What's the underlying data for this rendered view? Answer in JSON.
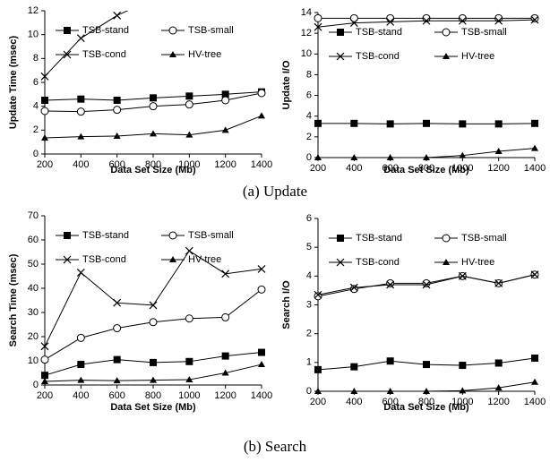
{
  "chart_data": [
    {
      "type": "line",
      "xlabel": "Data Set Size (Mb)",
      "ylabel": "Update Time (msec)",
      "x": [
        200,
        400,
        600,
        800,
        1000,
        1200,
        1400
      ],
      "xlim": [
        200,
        1400
      ],
      "xticks": [
        200,
        400,
        600,
        800,
        1000,
        1200,
        1400
      ],
      "ylim": [
        0,
        12
      ],
      "yticks": [
        0,
        2,
        4,
        6,
        8,
        10,
        12
      ],
      "series": [
        {
          "name": "TSB-stand",
          "color": "#000000",
          "marker": "square",
          "values": [
            4.5,
            4.6,
            4.5,
            4.7,
            4.85,
            5.0,
            5.2
          ]
        },
        {
          "name": "TSB-small",
          "color": "#000000",
          "marker": "circle",
          "values": [
            3.6,
            3.55,
            3.7,
            4.0,
            4.15,
            4.5,
            5.1
          ]
        },
        {
          "name": "TSB-cond",
          "color": "#000000",
          "marker": "x",
          "values": [
            6.5,
            9.7,
            11.6,
            13.0,
            null,
            null,
            null
          ]
        },
        {
          "name": "HV-tree",
          "color": "#000000",
          "marker": "triangle",
          "values": [
            1.35,
            1.45,
            1.5,
            1.7,
            1.6,
            2.0,
            3.2
          ]
        }
      ]
    },
    {
      "type": "line",
      "xlabel": "Data Set Size (Mb)",
      "ylabel": "Update I/O",
      "x": [
        200,
        400,
        600,
        800,
        1000,
        1200,
        1400
      ],
      "xlim": [
        200,
        1400
      ],
      "xticks": [
        200,
        400,
        600,
        800,
        1000,
        1200,
        1400
      ],
      "ylim": [
        0,
        14
      ],
      "yticks": [
        0,
        2,
        4,
        6,
        8,
        10,
        12,
        14
      ],
      "series": [
        {
          "name": "TSB-stand",
          "color": "#000000",
          "marker": "square",
          "values": [
            3.3,
            3.3,
            3.25,
            3.3,
            3.25,
            3.25,
            3.3
          ]
        },
        {
          "name": "TSB-small",
          "color": "#000000",
          "marker": "circle",
          "values": [
            13.45,
            13.45,
            13.45,
            13.45,
            13.45,
            13.45,
            13.45
          ]
        },
        {
          "name": "TSB-cond",
          "color": "#000000",
          "marker": "x",
          "values": [
            12.6,
            13.0,
            13.1,
            13.2,
            13.2,
            13.2,
            13.3
          ]
        },
        {
          "name": "HV-tree",
          "color": "#000000",
          "marker": "triangle",
          "values": [
            0,
            0,
            0,
            0,
            0.2,
            0.6,
            0.9
          ]
        }
      ]
    },
    {
      "type": "line",
      "xlabel": "Data Set Size (Mb)",
      "ylabel": "Search Time (msec)",
      "x": [
        200,
        400,
        600,
        800,
        1000,
        1200,
        1400
      ],
      "xlim": [
        200,
        1400
      ],
      "xticks": [
        200,
        400,
        600,
        800,
        1000,
        1200,
        1400
      ],
      "ylim": [
        0,
        70
      ],
      "yticks": [
        0,
        10,
        20,
        30,
        40,
        50,
        60,
        70
      ],
      "series": [
        {
          "name": "TSB-stand",
          "color": "#000000",
          "marker": "square",
          "values": [
            4,
            8.5,
            10.5,
            9.3,
            9.7,
            12,
            13.5
          ]
        },
        {
          "name": "TSB-small",
          "color": "#000000",
          "marker": "circle",
          "values": [
            10.5,
            19.5,
            23.5,
            26,
            27.5,
            28,
            39.5
          ]
        },
        {
          "name": "TSB-cond",
          "color": "#000000",
          "marker": "x",
          "values": [
            16,
            46.5,
            34,
            33,
            55.5,
            46,
            48
          ]
        },
        {
          "name": "HV-tree",
          "color": "#000000",
          "marker": "triangle",
          "values": [
            1.5,
            2,
            1.8,
            2,
            2.2,
            5,
            8.5
          ]
        }
      ]
    },
    {
      "type": "line",
      "xlabel": "Data Set Size (Mb)",
      "ylabel": "Search I/O",
      "x": [
        200,
        400,
        600,
        800,
        1000,
        1200,
        1400
      ],
      "xlim": [
        200,
        1400
      ],
      "xticks": [
        200,
        400,
        600,
        800,
        1000,
        1200,
        1400
      ],
      "ylim": [
        0,
        6
      ],
      "yticks": [
        0,
        1,
        2,
        3,
        4,
        5,
        6
      ],
      "series": [
        {
          "name": "TSB-stand",
          "color": "#000000",
          "marker": "square",
          "values": [
            0.75,
            0.85,
            1.05,
            0.93,
            0.9,
            0.98,
            1.15
          ]
        },
        {
          "name": "TSB-small",
          "color": "#000000",
          "marker": "circle",
          "values": [
            3.3,
            3.55,
            3.75,
            3.75,
            4.0,
            3.75,
            4.05
          ]
        },
        {
          "name": "TSB-cond",
          "color": "#000000",
          "marker": "x",
          "values": [
            3.35,
            3.6,
            3.7,
            3.7,
            4.0,
            3.75,
            4.05
          ]
        },
        {
          "name": "HV-tree",
          "color": "#000000",
          "marker": "triangle",
          "values": [
            0,
            0,
            0,
            0,
            0.02,
            0.12,
            0.32
          ]
        }
      ]
    }
  ],
  "captions": [
    "(a) Update",
    "(b) Search"
  ]
}
